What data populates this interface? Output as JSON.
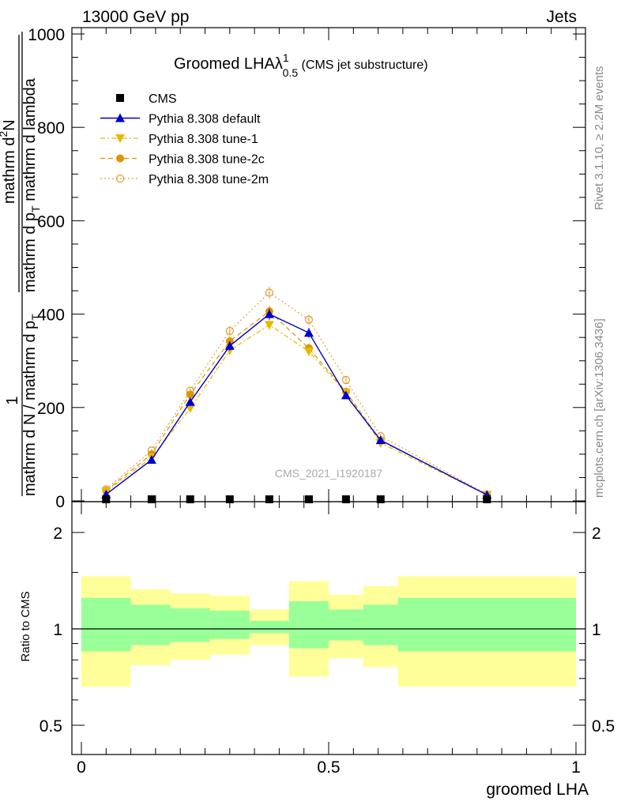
{
  "header": {
    "left": "13000 GeV pp",
    "right": "Jets"
  },
  "side_texts": {
    "rivet": "Rivet 3.1.10, ≥ 2.2M events",
    "mcplots": "mcplots.cern.ch [arXiv:1306.3436]"
  },
  "main_title": {
    "main": "Groomed LHAλ",
    "sup": "1",
    "sub": "0.5",
    "suffix": " (CMS jet substructure)"
  },
  "watermark": "CMS_2021_I1920187",
  "colors": {
    "cms": "#000000",
    "default": "#0000cc",
    "tune1": "#e8b800",
    "tune2c": "#e09400",
    "tune2m": "#e0a040",
    "band_outer": "#ffff99",
    "band_inner": "#99ff99"
  },
  "chart_data": [
    {
      "type": "line",
      "panel": "main",
      "ylabel": {
        "numerator": "1",
        "denominator": "mathrm d N / mathrm d p",
        "denominator_sub": "T",
        "frac_num": "mathrm d",
        "frac_num_sup": "2",
        "frac_num2": "N",
        "frac_den": "mathrm d p",
        "frac_den_sub": "T",
        "frac_den2": " mathrm d lambda"
      },
      "xlim": [
        0,
        1
      ],
      "ylim": [
        0,
        1000
      ],
      "yticks": [
        "0",
        "200",
        "400",
        "600",
        "800",
        "1000"
      ],
      "legend_position": "top-left",
      "series": [
        {
          "name": "CMS",
          "x": [
            0.05,
            0.142,
            0.22,
            0.3,
            0.38,
            0.46,
            0.535,
            0.605,
            0.82
          ],
          "y": [
            0.5,
            0.5,
            0.8,
            1.6,
            1.8,
            1.0,
            0.5,
            0.5,
            0.2
          ]
        },
        {
          "name": "Pythia 8.308 default",
          "x": [
            0.05,
            0.142,
            0.22,
            0.3,
            0.38,
            0.46,
            0.535,
            0.605,
            0.82
          ],
          "y": [
            14,
            88,
            212,
            332,
            400,
            360,
            226,
            130,
            13
          ]
        },
        {
          "name": "Pythia 8.308 tune-1",
          "x": [
            0.05,
            0.142,
            0.22,
            0.3,
            0.38,
            0.46,
            0.535,
            0.605,
            0.82
          ],
          "y": [
            20,
            93,
            198,
            322,
            377,
            320,
            232,
            124,
            13
          ]
        },
        {
          "name": "Pythia 8.308 tune-2c",
          "x": [
            0.05,
            0.142,
            0.22,
            0.3,
            0.38,
            0.46,
            0.535,
            0.605,
            0.82
          ],
          "y": [
            22,
            100,
            228,
            342,
            406,
            327,
            234,
            129,
            13
          ]
        },
        {
          "name": "Pythia 8.308 tune-2m",
          "x": [
            0.05,
            0.142,
            0.22,
            0.3,
            0.38,
            0.46,
            0.535,
            0.605,
            0.82
          ],
          "y": [
            25,
            108,
            236,
            364,
            446,
            388,
            259,
            139,
            14
          ]
        }
      ]
    },
    {
      "type": "area",
      "panel": "ratio",
      "ylabel": "Ratio to CMS",
      "xlabel": "groomed LHA",
      "xlim": [
        0,
        1
      ],
      "ylim": [
        0.4,
        2.4
      ],
      "log_y": true,
      "yticks": [
        "0.5",
        "1",
        "2"
      ],
      "xticks": [
        "0",
        "0.5",
        "1"
      ],
      "reference_line": 1,
      "bins": [
        {
          "x0": 0.0,
          "x1": 0.1,
          "inner": [
            0.85,
            1.25
          ],
          "outer": [
            0.66,
            1.46
          ]
        },
        {
          "x0": 0.1,
          "x1": 0.18,
          "inner": [
            0.89,
            1.19
          ],
          "outer": [
            0.77,
            1.33
          ]
        },
        {
          "x0": 0.18,
          "x1": 0.26,
          "inner": [
            0.91,
            1.16
          ],
          "outer": [
            0.8,
            1.29
          ]
        },
        {
          "x0": 0.26,
          "x1": 0.34,
          "inner": [
            0.93,
            1.14
          ],
          "outer": [
            0.83,
            1.27
          ]
        },
        {
          "x0": 0.34,
          "x1": 0.42,
          "inner": [
            0.97,
            1.06
          ],
          "outer": [
            0.89,
            1.15
          ]
        },
        {
          "x0": 0.42,
          "x1": 0.5,
          "inner": [
            0.87,
            1.22
          ],
          "outer": [
            0.71,
            1.41
          ]
        },
        {
          "x0": 0.5,
          "x1": 0.57,
          "inner": [
            0.92,
            1.15
          ],
          "outer": [
            0.81,
            1.28
          ]
        },
        {
          "x0": 0.57,
          "x1": 0.64,
          "inner": [
            0.89,
            1.19
          ],
          "outer": [
            0.76,
            1.36
          ]
        },
        {
          "x0": 0.64,
          "x1": 1.0,
          "inner": [
            0.85,
            1.25
          ],
          "outer": [
            0.66,
            1.46
          ]
        }
      ]
    }
  ]
}
